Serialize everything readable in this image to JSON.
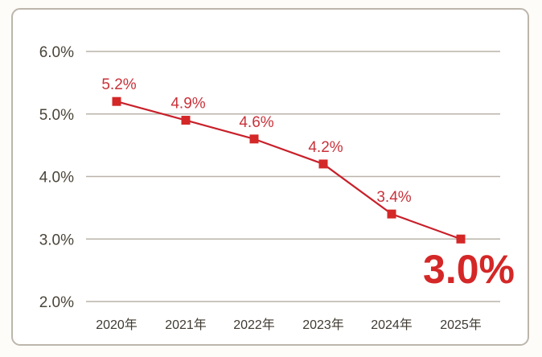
{
  "chart_data": {
    "type": "line",
    "title": "",
    "xlabel": "",
    "ylabel": "",
    "categories": [
      "2020年",
      "2021年",
      "2022年",
      "2023年",
      "2024年",
      "2025年"
    ],
    "series": [
      {
        "name": "",
        "values": [
          5.2,
          4.9,
          4.6,
          4.2,
          3.4,
          3.0
        ],
        "labels": [
          "5.2%",
          "4.9%",
          "4.6%",
          "4.2%",
          "3.4%",
          "3.0%"
        ]
      }
    ],
    "ylim": [
      2.0,
      6.0
    ],
    "yticks": [
      6.0,
      5.0,
      4.0,
      3.0,
      2.0
    ],
    "ytick_labels": [
      "6.0%",
      "5.0%",
      "4.0%",
      "3.0%",
      "2.0%"
    ],
    "grid": true,
    "legend": "none",
    "highlight_label": "3.0%",
    "colors": {
      "line": "#c8202a",
      "marker": "#d42727",
      "grid": "#b9b3a9",
      "label": "#c8323a",
      "highlight": "#d42727"
    }
  }
}
